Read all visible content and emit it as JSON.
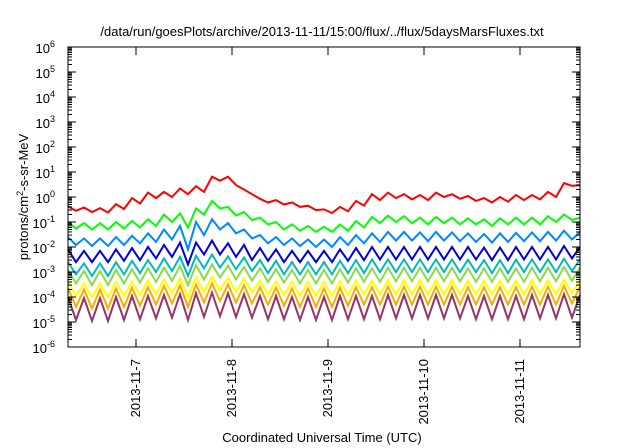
{
  "chart_data": {
    "type": "line",
    "title": "/data/run/goesPlots/archive/2013-11-11/15:00/flux/../flux/5daysMarsFluxes.txt",
    "xlabel": "Coordinated Universal Time (UTC)",
    "ylabel": {
      "pre": "protons/cm",
      "sup": "2",
      "post": "-s-sr-MeV"
    },
    "yscale": "log",
    "ylim": [
      1e-06,
      1000000.0
    ],
    "y_ticks": [
      {
        "value": 1e-06,
        "base": "10",
        "exp": "-6"
      },
      {
        "value": 1e-05,
        "base": "10",
        "exp": "-5"
      },
      {
        "value": 0.0001,
        "base": "10",
        "exp": "-4"
      },
      {
        "value": 0.001,
        "base": "10",
        "exp": "-3"
      },
      {
        "value": 0.01,
        "base": "10",
        "exp": "-2"
      },
      {
        "value": 0.1,
        "base": "10",
        "exp": "-1"
      },
      {
        "value": 1,
        "base": "10",
        "exp": "0"
      },
      {
        "value": 10,
        "base": "10",
        "exp": "1"
      },
      {
        "value": 100,
        "base": "10",
        "exp": "2"
      },
      {
        "value": 1000,
        "base": "10",
        "exp": "3"
      },
      {
        "value": 10000.0,
        "base": "10",
        "exp": "4"
      },
      {
        "value": 100000.0,
        "base": "10",
        "exp": "5"
      },
      {
        "value": 1000000.0,
        "base": "10",
        "exp": "6"
      }
    ],
    "xlim": [
      "2013-11-06 07:00",
      "2013-11-11 15:00"
    ],
    "x_ticks": [
      {
        "value": "2013-11-07",
        "label": "2013-11-7"
      },
      {
        "value": "2013-11-08",
        "label": "2013-11-8"
      },
      {
        "value": "2013-11-09",
        "label": "2013-11-9"
      },
      {
        "value": "2013-11-10",
        "label": "2013-11-10"
      },
      {
        "value": "2013-11-11",
        "label": "2013-11-11"
      }
    ],
    "grid": false,
    "legend": "none",
    "x": [
      "2013-11-06 07:00",
      "2013-11-06 09:00",
      "2013-11-06 11:00",
      "2013-11-06 13:00",
      "2013-11-06 15:00",
      "2013-11-06 17:00",
      "2013-11-06 19:00",
      "2013-11-06 21:00",
      "2013-11-06 23:00",
      "2013-11-07 01:00",
      "2013-11-07 03:00",
      "2013-11-07 05:00",
      "2013-11-07 07:00",
      "2013-11-07 09:00",
      "2013-11-07 11:00",
      "2013-11-07 13:00",
      "2013-11-07 15:00",
      "2013-11-07 17:00",
      "2013-11-07 19:00",
      "2013-11-07 21:00",
      "2013-11-07 23:00",
      "2013-11-08 01:00",
      "2013-11-08 03:00",
      "2013-11-08 05:00",
      "2013-11-08 07:00",
      "2013-11-08 09:00",
      "2013-11-08 11:00",
      "2013-11-08 13:00",
      "2013-11-08 15:00",
      "2013-11-08 17:00",
      "2013-11-08 19:00",
      "2013-11-08 21:00",
      "2013-11-08 23:00",
      "2013-11-09 01:00",
      "2013-11-09 03:00",
      "2013-11-09 05:00",
      "2013-11-09 07:00",
      "2013-11-09 09:00",
      "2013-11-09 11:00",
      "2013-11-09 13:00",
      "2013-11-09 15:00",
      "2013-11-09 17:00",
      "2013-11-09 19:00",
      "2013-11-09 21:00",
      "2013-11-09 23:00",
      "2013-11-10 01:00",
      "2013-11-10 03:00",
      "2013-11-10 05:00",
      "2013-11-10 07:00",
      "2013-11-10 09:00",
      "2013-11-10 11:00",
      "2013-11-10 13:00",
      "2013-11-10 15:00",
      "2013-11-10 17:00",
      "2013-11-10 19:00",
      "2013-11-10 21:00",
      "2013-11-10 23:00",
      "2013-11-11 01:00",
      "2013-11-11 03:00",
      "2013-11-11 05:00",
      "2013-11-11 07:00",
      "2013-11-11 09:00",
      "2013-11-11 11:00",
      "2013-11-11 13:00",
      "2013-11-11 15:00"
    ],
    "series": [
      {
        "color": "#ff0000",
        "values": [
          0.42,
          0.28,
          0.38,
          0.25,
          0.36,
          0.24,
          0.52,
          0.33,
          0.9,
          0.55,
          1.5,
          0.9,
          1.6,
          1.0,
          2.2,
          1.3,
          2.7,
          1.6,
          6.5,
          4.5,
          6.5,
          3.0,
          2.0,
          1.3,
          0.85,
          0.6,
          0.75,
          0.5,
          0.6,
          0.4,
          0.45,
          0.3,
          0.32,
          0.23,
          0.4,
          0.27,
          0.7,
          0.45,
          1.3,
          0.75,
          1.5,
          0.9,
          1.3,
          0.8,
          1.2,
          0.75,
          1.5,
          1.0,
          1.3,
          0.85,
          1.1,
          0.7,
          0.9,
          0.6,
          1.0,
          0.65,
          1.2,
          0.75,
          1.2,
          0.8,
          1.6,
          1.0,
          3.6,
          2.8,
          3.0
        ]
      },
      {
        "color": "#00ff00",
        "values": [
          0.1,
          0.055,
          0.09,
          0.05,
          0.09,
          0.05,
          0.1,
          0.055,
          0.11,
          0.06,
          0.13,
          0.07,
          0.2,
          0.1,
          0.22,
          0.06,
          0.35,
          0.2,
          0.7,
          0.35,
          0.4,
          0.18,
          0.25,
          0.12,
          0.15,
          0.08,
          0.1,
          0.05,
          0.08,
          0.045,
          0.07,
          0.04,
          0.065,
          0.04,
          0.08,
          0.045,
          0.11,
          0.06,
          0.16,
          0.09,
          0.18,
          0.1,
          0.17,
          0.09,
          0.15,
          0.08,
          0.16,
          0.09,
          0.15,
          0.08,
          0.14,
          0.08,
          0.13,
          0.07,
          0.14,
          0.08,
          0.15,
          0.08,
          0.15,
          0.08,
          0.17,
          0.1,
          0.2,
          0.12,
          0.15
        ]
      },
      {
        "color": "#0088ff",
        "values": [
          0.025,
          0.012,
          0.022,
          0.011,
          0.022,
          0.011,
          0.025,
          0.012,
          0.028,
          0.014,
          0.035,
          0.016,
          0.05,
          0.02,
          0.07,
          0.008,
          0.1,
          0.03,
          0.13,
          0.05,
          0.09,
          0.035,
          0.05,
          0.022,
          0.03,
          0.014,
          0.025,
          0.012,
          0.022,
          0.011,
          0.02,
          0.01,
          0.02,
          0.01,
          0.025,
          0.012,
          0.03,
          0.014,
          0.035,
          0.016,
          0.04,
          0.018,
          0.04,
          0.018,
          0.038,
          0.017,
          0.04,
          0.018,
          0.038,
          0.017,
          0.035,
          0.016,
          0.033,
          0.015,
          0.035,
          0.016,
          0.037,
          0.017,
          0.038,
          0.017,
          0.04,
          0.018,
          0.045,
          0.02,
          0.04
        ]
      },
      {
        "color": "#0000dd",
        "values": [
          0.008,
          0.0025,
          0.007,
          0.0025,
          0.007,
          0.0025,
          0.008,
          0.0028,
          0.009,
          0.003,
          0.01,
          0.0035,
          0.012,
          0.004,
          0.015,
          0.002,
          0.015,
          0.005,
          0.018,
          0.005,
          0.014,
          0.004,
          0.012,
          0.003,
          0.009,
          0.0028,
          0.008,
          0.0025,
          0.007,
          0.0025,
          0.007,
          0.0025,
          0.007,
          0.0025,
          0.008,
          0.0028,
          0.009,
          0.003,
          0.01,
          0.0032,
          0.01,
          0.0032,
          0.01,
          0.0032,
          0.01,
          0.0032,
          0.01,
          0.0032,
          0.01,
          0.0032,
          0.01,
          0.0032,
          0.0095,
          0.003,
          0.0095,
          0.003,
          0.01,
          0.0032,
          0.01,
          0.0032,
          0.01,
          0.0032,
          0.011,
          0.0035,
          0.01
        ]
      },
      {
        "color": "#00bbbb",
        "values": [
          0.0025,
          0.0008,
          0.0022,
          0.0007,
          0.0022,
          0.0007,
          0.0025,
          0.0008,
          0.0028,
          0.0009,
          0.003,
          0.001,
          0.0035,
          0.0011,
          0.004,
          0.0007,
          0.0045,
          0.0014,
          0.005,
          0.0015,
          0.0042,
          0.0013,
          0.0038,
          0.0011,
          0.003,
          0.0009,
          0.0028,
          0.0008,
          0.0025,
          0.0008,
          0.0025,
          0.0008,
          0.0025,
          0.0008,
          0.0028,
          0.0009,
          0.003,
          0.0009,
          0.0032,
          0.001,
          0.0032,
          0.001,
          0.0032,
          0.001,
          0.0032,
          0.001,
          0.0032,
          0.001,
          0.0032,
          0.001,
          0.0031,
          0.001,
          0.003,
          0.0009,
          0.003,
          0.0009,
          0.0031,
          0.001,
          0.0032,
          0.001,
          0.0032,
          0.001,
          0.0034,
          0.0011,
          0.0032
        ]
      },
      {
        "color": "#88dd44",
        "values": [
          0.0012,
          0.00035,
          0.0011,
          0.0003,
          0.0011,
          0.0003,
          0.0012,
          0.00035,
          0.0013,
          0.00038,
          0.0014,
          0.0004,
          0.0015,
          0.00045,
          0.0017,
          0.0003,
          0.0019,
          0.0005,
          0.002,
          0.0006,
          0.0018,
          0.0005,
          0.0016,
          0.00045,
          0.0014,
          0.0004,
          0.0013,
          0.00038,
          0.0012,
          0.00035,
          0.0012,
          0.00035,
          0.0012,
          0.00035,
          0.0013,
          0.00038,
          0.0014,
          0.0004,
          0.0014,
          0.0004,
          0.0015,
          0.00042,
          0.0015,
          0.00042,
          0.0015,
          0.00042,
          0.0015,
          0.00042,
          0.0015,
          0.00042,
          0.0014,
          0.0004,
          0.0014,
          0.0004,
          0.0014,
          0.0004,
          0.0014,
          0.0004,
          0.0015,
          0.00042,
          0.0015,
          0.00042,
          0.0016,
          0.00045,
          0.0015
        ]
      },
      {
        "color": "#ffff00",
        "values": [
          0.0004,
          0.00011,
          0.00035,
          0.0001,
          0.00035,
          0.0001,
          0.0004,
          0.00011,
          0.00042,
          0.00012,
          0.00045,
          0.00013,
          0.0005,
          0.00014,
          0.00055,
          0.0001,
          0.0006,
          0.00016,
          0.00065,
          0.00018,
          0.0006,
          0.00016,
          0.00055,
          0.00015,
          0.00045,
          0.00013,
          0.00042,
          0.00012,
          0.0004,
          0.00011,
          0.0004,
          0.00011,
          0.0004,
          0.00011,
          0.00042,
          0.00012,
          0.00045,
          0.00013,
          0.00045,
          0.00013,
          0.00047,
          0.00013,
          0.00047,
          0.00013,
          0.00047,
          0.00013,
          0.00047,
          0.00013,
          0.00047,
          0.00013,
          0.00045,
          0.00013,
          0.00045,
          0.00013,
          0.00045,
          0.00013,
          0.00045,
          0.00013,
          0.00047,
          0.00013,
          0.00047,
          0.00013,
          0.0005,
          0.00014,
          0.00047
        ]
      },
      {
        "color": "#ffaa00",
        "values": [
          0.00022,
          4e-05,
          0.0002,
          3.5e-05,
          0.0002,
          3.5e-05,
          0.00022,
          4e-05,
          0.00024,
          4.5e-05,
          0.00025,
          5e-05,
          0.00028,
          5.5e-05,
          0.0003,
          4e-05,
          0.00032,
          6e-05,
          0.00035,
          7e-05,
          0.00032,
          6e-05,
          0.0003,
          5.5e-05,
          0.00025,
          5e-05,
          0.00024,
          4.5e-05,
          0.00022,
          4e-05,
          0.00022,
          4e-05,
          0.00022,
          4e-05,
          0.00024,
          4.5e-05,
          0.00025,
          5e-05,
          0.00025,
          5e-05,
          0.00026,
          5e-05,
          0.00026,
          5e-05,
          0.00026,
          5e-05,
          0.00026,
          5e-05,
          0.00026,
          5e-05,
          0.00025,
          5e-05,
          0.00025,
          5e-05,
          0.00025,
          5e-05,
          0.00025,
          5e-05,
          0.00026,
          5e-05,
          0.00026,
          5e-05,
          0.00028,
          5.5e-05,
          0.00026
        ]
      },
      {
        "color": "#993366",
        "values": [
          0.0001,
          1.2e-05,
          9e-05,
          1.1e-05,
          9e-05,
          1.1e-05,
          0.0001,
          1.2e-05,
          0.00011,
          1.3e-05,
          0.00011,
          1.4e-05,
          0.00012,
          1.5e-05,
          0.00013,
          1.2e-05,
          0.00014,
          1.6e-05,
          0.00015,
          1.7e-05,
          0.00014,
          1.6e-05,
          0.00013,
          1.5e-05,
          0.00011,
          1.3e-05,
          0.00011,
          1.3e-05,
          0.0001,
          1.2e-05,
          0.0001,
          1.2e-05,
          0.0001,
          1.2e-05,
          0.00011,
          1.3e-05,
          0.00011,
          1.3e-05,
          0.00011,
          1.3e-05,
          0.00012,
          1.4e-05,
          0.00012,
          1.4e-05,
          0.00012,
          1.4e-05,
          0.00012,
          1.4e-05,
          0.00012,
          1.4e-05,
          0.00011,
          1.3e-05,
          0.00011,
          1.3e-05,
          0.00011,
          1.3e-05,
          0.00011,
          1.3e-05,
          0.00012,
          1.4e-05,
          0.00012,
          1.4e-05,
          0.00013,
          1.5e-05,
          0.00012
        ]
      }
    ]
  }
}
